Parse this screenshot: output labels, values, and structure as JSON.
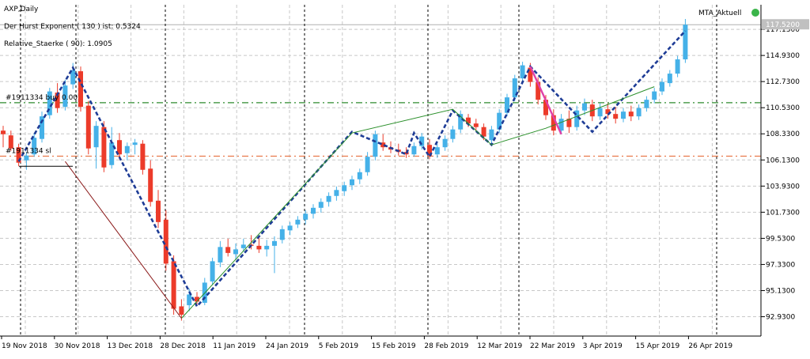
{
  "chart_data": {
    "type": "candlestick",
    "title": "AXP,Daily",
    "info_lines": [
      "Der Hurst Exponent ( 130 ) ist: 0.5324",
      "Relative_Staerke ( 90): 1.0905"
    ],
    "price_levels": [
      {
        "label": "#1911334 buy",
        "price": 110.95,
        "color": "#2e8b2e"
      },
      {
        "label": "#1911334 sl",
        "price": 106.45,
        "color": "#e8794a"
      }
    ],
    "level_value_label": "0.00",
    "mta_label": "MTA_Aktuell",
    "last_price_label": "117.5200",
    "last_price": 117.52,
    "ylim": [
      91.3,
      119.2
    ],
    "yticks": [
      "117.1300",
      "114.9300",
      "112.7300",
      "110.5300",
      "108.3300",
      "106.1300",
      "103.9300",
      "101.7300",
      "99.5300",
      "97.3300",
      "95.1300",
      "92.9300"
    ],
    "xticks": [
      "19 Nov 2018",
      "30 Nov 2018",
      "13 Dec 2018",
      "28 Dec 2018",
      "11 Jan 2019",
      "24 Jan 2019",
      "5 Feb 2019",
      "15 Feb 2019",
      "28 Feb 2019",
      "12 Mar 2019",
      "22 Mar 2019",
      "3 Apr 2019",
      "15 Apr 2019",
      "26 Apr 2019"
    ],
    "candles": [
      {
        "o": 108.6,
        "h": 109.0,
        "l": 107.2,
        "c": 108.3
      },
      {
        "o": 108.2,
        "h": 108.6,
        "l": 106.9,
        "c": 107.1
      },
      {
        "o": 107.2,
        "h": 107.5,
        "l": 105.6,
        "c": 105.9
      },
      {
        "o": 106.1,
        "h": 106.8,
        "l": 105.3,
        "c": 106.5
      },
      {
        "o": 106.6,
        "h": 108.4,
        "l": 106.4,
        "c": 108.0
      },
      {
        "o": 107.9,
        "h": 110.2,
        "l": 107.6,
        "c": 109.8
      },
      {
        "o": 109.9,
        "h": 112.2,
        "l": 109.6,
        "c": 111.9
      },
      {
        "o": 111.8,
        "h": 112.6,
        "l": 110.1,
        "c": 110.5
      },
      {
        "o": 110.6,
        "h": 112.9,
        "l": 110.3,
        "c": 112.4
      },
      {
        "o": 112.5,
        "h": 114.3,
        "l": 112.1,
        "c": 113.7
      },
      {
        "o": 113.6,
        "h": 114.0,
        "l": 110.2,
        "c": 110.6
      },
      {
        "o": 110.7,
        "h": 111.1,
        "l": 106.6,
        "c": 107.1
      },
      {
        "o": 107.2,
        "h": 109.4,
        "l": 105.4,
        "c": 109.0
      },
      {
        "o": 108.9,
        "h": 109.4,
        "l": 105.1,
        "c": 105.5
      },
      {
        "o": 105.7,
        "h": 108.9,
        "l": 105.4,
        "c": 107.6
      },
      {
        "o": 107.8,
        "h": 108.4,
        "l": 106.2,
        "c": 106.6
      },
      {
        "o": 106.7,
        "h": 107.6,
        "l": 106.1,
        "c": 107.3
      },
      {
        "o": 107.4,
        "h": 107.9,
        "l": 106.6,
        "c": 107.6
      },
      {
        "o": 107.5,
        "h": 107.8,
        "l": 104.9,
        "c": 105.3
      },
      {
        "o": 105.4,
        "h": 106.1,
        "l": 102.2,
        "c": 102.6
      },
      {
        "o": 102.7,
        "h": 103.6,
        "l": 100.4,
        "c": 100.9
      },
      {
        "o": 101.1,
        "h": 101.9,
        "l": 96.8,
        "c": 97.4
      },
      {
        "o": 97.6,
        "h": 98.1,
        "l": 93.1,
        "c": 93.6
      },
      {
        "o": 93.8,
        "h": 94.4,
        "l": 92.6,
        "c": 93.1
      },
      {
        "o": 93.9,
        "h": 95.3,
        "l": 93.4,
        "c": 94.8
      },
      {
        "o": 94.6,
        "h": 95.0,
        "l": 93.9,
        "c": 94.2
      },
      {
        "o": 94.1,
        "h": 96.2,
        "l": 93.9,
        "c": 95.8
      },
      {
        "o": 95.9,
        "h": 97.9,
        "l": 95.6,
        "c": 97.6
      },
      {
        "o": 97.5,
        "h": 99.3,
        "l": 97.1,
        "c": 98.8
      },
      {
        "o": 98.8,
        "h": 99.5,
        "l": 98.0,
        "c": 98.3
      },
      {
        "o": 98.2,
        "h": 99.1,
        "l": 97.7,
        "c": 98.6
      },
      {
        "o": 98.7,
        "h": 99.5,
        "l": 98.4,
        "c": 99.0
      },
      {
        "o": 99.0,
        "h": 99.8,
        "l": 98.6,
        "c": 98.9
      },
      {
        "o": 98.9,
        "h": 99.6,
        "l": 98.3,
        "c": 98.6
      },
      {
        "o": 98.6,
        "h": 99.4,
        "l": 98.0,
        "c": 98.9
      },
      {
        "o": 98.9,
        "h": 99.7,
        "l": 96.6,
        "c": 99.3
      },
      {
        "o": 99.4,
        "h": 100.6,
        "l": 99.1,
        "c": 100.3
      },
      {
        "o": 100.2,
        "h": 100.9,
        "l": 99.8,
        "c": 100.6
      },
      {
        "o": 100.7,
        "h": 101.4,
        "l": 100.4,
        "c": 101.1
      },
      {
        "o": 101.1,
        "h": 101.9,
        "l": 100.7,
        "c": 101.6
      },
      {
        "o": 101.6,
        "h": 102.4,
        "l": 101.2,
        "c": 102.1
      },
      {
        "o": 102.1,
        "h": 102.9,
        "l": 101.7,
        "c": 102.6
      },
      {
        "o": 102.6,
        "h": 103.4,
        "l": 102.2,
        "c": 103.1
      },
      {
        "o": 103.1,
        "h": 103.9,
        "l": 102.7,
        "c": 103.6
      },
      {
        "o": 103.5,
        "h": 104.3,
        "l": 103.1,
        "c": 104.0
      },
      {
        "o": 104.0,
        "h": 104.8,
        "l": 103.6,
        "c": 104.5
      },
      {
        "o": 104.5,
        "h": 105.4,
        "l": 104.1,
        "c": 105.1
      },
      {
        "o": 105.1,
        "h": 106.8,
        "l": 104.8,
        "c": 106.4
      },
      {
        "o": 106.4,
        "h": 108.6,
        "l": 106.1,
        "c": 108.3
      },
      {
        "o": 107.6,
        "h": 108.3,
        "l": 106.9,
        "c": 107.2
      },
      {
        "o": 107.2,
        "h": 107.7,
        "l": 106.7,
        "c": 107.0
      },
      {
        "o": 107.0,
        "h": 107.5,
        "l": 106.5,
        "c": 106.8
      },
      {
        "o": 106.8,
        "h": 107.2,
        "l": 106.3,
        "c": 106.6
      },
      {
        "o": 106.6,
        "h": 107.6,
        "l": 106.4,
        "c": 107.3
      },
      {
        "o": 107.3,
        "h": 108.4,
        "l": 107.0,
        "c": 108.1
      },
      {
        "o": 107.4,
        "h": 107.9,
        "l": 106.2,
        "c": 106.5
      },
      {
        "o": 106.6,
        "h": 107.5,
        "l": 106.3,
        "c": 107.2
      },
      {
        "o": 107.2,
        "h": 108.2,
        "l": 106.9,
        "c": 107.9
      },
      {
        "o": 107.9,
        "h": 109.0,
        "l": 107.6,
        "c": 108.7
      },
      {
        "o": 108.7,
        "h": 110.3,
        "l": 108.4,
        "c": 110.0
      },
      {
        "o": 109.7,
        "h": 110.0,
        "l": 108.9,
        "c": 109.2
      },
      {
        "o": 109.2,
        "h": 109.6,
        "l": 108.6,
        "c": 108.9
      },
      {
        "o": 108.9,
        "h": 109.2,
        "l": 107.8,
        "c": 108.1
      },
      {
        "o": 107.8,
        "h": 109.0,
        "l": 107.5,
        "c": 108.7
      },
      {
        "o": 108.7,
        "h": 110.4,
        "l": 108.4,
        "c": 110.1
      },
      {
        "o": 110.1,
        "h": 111.7,
        "l": 109.8,
        "c": 111.4
      },
      {
        "o": 111.4,
        "h": 113.3,
        "l": 111.1,
        "c": 113.0
      },
      {
        "o": 113.0,
        "h": 114.4,
        "l": 112.7,
        "c": 114.1
      },
      {
        "o": 113.9,
        "h": 114.3,
        "l": 112.3,
        "c": 112.7
      },
      {
        "o": 112.7,
        "h": 113.1,
        "l": 110.8,
        "c": 111.2
      },
      {
        "o": 111.2,
        "h": 111.6,
        "l": 109.5,
        "c": 109.9
      },
      {
        "o": 109.9,
        "h": 110.4,
        "l": 108.2,
        "c": 108.6
      },
      {
        "o": 108.6,
        "h": 110.0,
        "l": 108.3,
        "c": 109.6
      },
      {
        "o": 109.6,
        "h": 110.3,
        "l": 108.4,
        "c": 108.9
      },
      {
        "o": 108.9,
        "h": 110.7,
        "l": 108.6,
        "c": 110.3
      },
      {
        "o": 110.3,
        "h": 111.3,
        "l": 109.9,
        "c": 110.9
      },
      {
        "o": 110.8,
        "h": 111.2,
        "l": 109.4,
        "c": 109.8
      },
      {
        "o": 109.8,
        "h": 110.9,
        "l": 109.5,
        "c": 110.5
      },
      {
        "o": 110.4,
        "h": 110.9,
        "l": 109.6,
        "c": 110.0
      },
      {
        "o": 110.0,
        "h": 110.6,
        "l": 109.2,
        "c": 109.6
      },
      {
        "o": 109.6,
        "h": 110.5,
        "l": 109.3,
        "c": 110.2
      },
      {
        "o": 110.2,
        "h": 110.7,
        "l": 109.4,
        "c": 109.8
      },
      {
        "o": 109.8,
        "h": 110.8,
        "l": 109.5,
        "c": 110.5
      },
      {
        "o": 110.5,
        "h": 111.5,
        "l": 110.2,
        "c": 111.2
      },
      {
        "o": 111.2,
        "h": 112.2,
        "l": 110.9,
        "c": 111.9
      },
      {
        "o": 111.9,
        "h": 113.0,
        "l": 111.6,
        "c": 112.7
      },
      {
        "o": 112.6,
        "h": 113.7,
        "l": 112.3,
        "c": 113.4
      },
      {
        "o": 113.4,
        "h": 114.9,
        "l": 113.1,
        "c": 114.6
      },
      {
        "o": 114.6,
        "h": 118.0,
        "l": 114.3,
        "c": 117.52
      }
    ],
    "candle_x_start": 4,
    "candle_x_step": 9.8,
    "colors": {
      "bull": "#45b1e8",
      "bear": "#ec3b2a",
      "pivot": "#1e3c96",
      "trend_up": "#2a8f2a",
      "swing": "#8b1a1a",
      "pink": "#e040a8",
      "sl": "#e8794a",
      "buy": "#2e8b2e",
      "grid": "#c8c8c8",
      "vline": "#000000",
      "axis": "#000000",
      "badge_green": "#3bb54a"
    },
    "series": [
      {
        "name": "pivot-line",
        "points": [
          [
            2,
            106.0
          ],
          [
            9,
            113.9
          ],
          [
            25,
            93.8
          ],
          [
            45,
            108.5
          ],
          [
            52,
            106.6
          ],
          [
            53,
            108.4
          ],
          [
            55,
            106.4
          ],
          [
            58,
            110.3
          ],
          [
            63,
            107.4
          ],
          [
            68,
            114.0
          ],
          [
            76,
            108.5
          ],
          [
            88,
            117.0
          ]
        ]
      },
      {
        "name": "green-trend",
        "points": [
          [
            23,
            92.8
          ],
          [
            45,
            108.4
          ],
          [
            58,
            110.4
          ],
          [
            63,
            107.4
          ],
          [
            70,
            108.8
          ],
          [
            84,
            112.3
          ]
        ]
      },
      {
        "name": "swing-line",
        "points": [
          [
            8,
            106.0
          ],
          [
            23,
            92.8
          ]
        ]
      },
      {
        "name": "pink-line",
        "points": [
          [
            68,
            114.0
          ],
          [
            72,
            108.3
          ]
        ]
      }
    ],
    "vlines": [
      1,
      9,
      17,
      22,
      39,
      50,
      66
    ]
  }
}
